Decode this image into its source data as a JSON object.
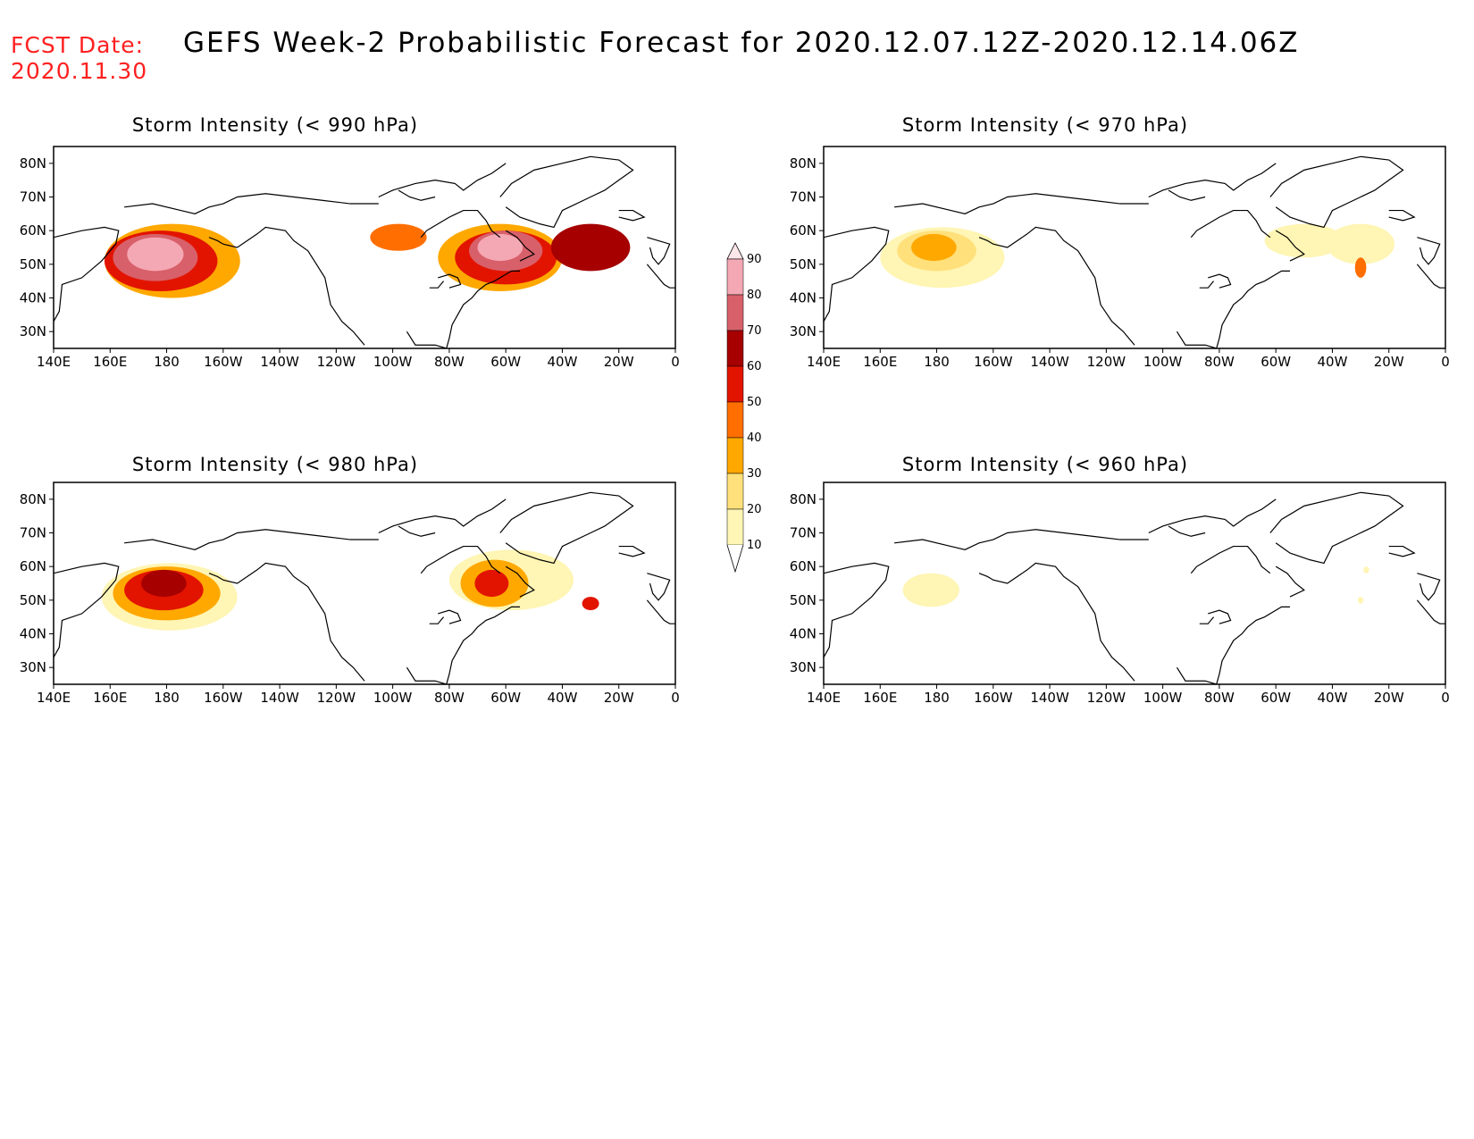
{
  "header": {
    "fcst_label": "FCST Date:",
    "fcst_date": "2020.11.30",
    "title": "GEFS Week-2 Probabilistic Forecast for 2020.12.07.12Z-2020.12.14.06Z"
  },
  "panels": [
    {
      "id": "p990",
      "title": "Storm Intensity (< 990 hPa)",
      "threshold_hpa": 990,
      "blobs": [
        {
          "lon": 182,
          "lat": 51,
          "rx": 24,
          "ry": 11,
          "level": 3
        },
        {
          "lon": 178,
          "lat": 51,
          "rx": 20,
          "ry": 9,
          "level": 5
        },
        {
          "lon": 176,
          "lat": 52,
          "rx": 15,
          "ry": 7,
          "level": 7
        },
        {
          "lon": 176,
          "lat": 53,
          "rx": 10,
          "ry": 5,
          "level": 8
        },
        {
          "lon": 262,
          "lat": 58,
          "rx": 10,
          "ry": 4,
          "level": 4
        },
        {
          "lon": 298,
          "lat": 52,
          "rx": 22,
          "ry": 10,
          "level": 3
        },
        {
          "lon": 300,
          "lat": 52,
          "rx": 18,
          "ry": 8,
          "level": 5
        },
        {
          "lon": 300,
          "lat": 54,
          "rx": 13,
          "ry": 6,
          "level": 7
        },
        {
          "lon": 298,
          "lat": 55,
          "rx": 8,
          "ry": 4,
          "level": 8
        },
        {
          "lon": 330,
          "lat": 55,
          "rx": 14,
          "ry": 7,
          "level": 6
        }
      ]
    },
    {
      "id": "p970",
      "title": "Storm Intensity (< 970 hPa)",
      "threshold_hpa": 970,
      "blobs": [
        {
          "lon": 182,
          "lat": 52,
          "rx": 22,
          "ry": 9,
          "level": 1
        },
        {
          "lon": 180,
          "lat": 54,
          "rx": 14,
          "ry": 6,
          "level": 2
        },
        {
          "lon": 179,
          "lat": 55,
          "rx": 8,
          "ry": 4,
          "level": 3
        },
        {
          "lon": 310,
          "lat": 57,
          "rx": 14,
          "ry": 5,
          "level": 1
        },
        {
          "lon": 330,
          "lat": 56,
          "rx": 12,
          "ry": 6,
          "level": 1
        },
        {
          "lon": 330,
          "lat": 49,
          "rx": 2,
          "ry": 3,
          "level": 4
        }
      ]
    },
    {
      "id": "p980",
      "title": "Storm Intensity (< 980 hPa)",
      "threshold_hpa": 980,
      "blobs": [
        {
          "lon": 181,
          "lat": 51,
          "rx": 24,
          "ry": 10,
          "level": 1
        },
        {
          "lon": 180,
          "lat": 52,
          "rx": 19,
          "ry": 8,
          "level": 3
        },
        {
          "lon": 179,
          "lat": 53,
          "rx": 14,
          "ry": 6,
          "level": 5
        },
        {
          "lon": 179,
          "lat": 55,
          "rx": 8,
          "ry": 4,
          "level": 6
        },
        {
          "lon": 302,
          "lat": 56,
          "rx": 22,
          "ry": 9,
          "level": 1
        },
        {
          "lon": 296,
          "lat": 55,
          "rx": 12,
          "ry": 7,
          "level": 3
        },
        {
          "lon": 295,
          "lat": 55,
          "rx": 6,
          "ry": 4,
          "level": 5
        },
        {
          "lon": 330,
          "lat": 49,
          "rx": 3,
          "ry": 2,
          "level": 5
        }
      ]
    },
    {
      "id": "p960",
      "title": "Storm Intensity (< 960 hPa)",
      "threshold_hpa": 960,
      "blobs": [
        {
          "lon": 178,
          "lat": 53,
          "rx": 10,
          "ry": 5,
          "level": 1
        },
        {
          "lon": 332,
          "lat": 59,
          "rx": 1,
          "ry": 1,
          "level": 1
        },
        {
          "lon": 330,
          "lat": 50,
          "rx": 1,
          "ry": 1,
          "level": 1
        }
      ]
    }
  ],
  "axes": {
    "lon_min": 140,
    "lon_max": 360,
    "lat_min": 25,
    "lat_max": 85,
    "x_ticks": [
      {
        "lon": 140,
        "label": "140E"
      },
      {
        "lon": 160,
        "label": "160E"
      },
      {
        "lon": 180,
        "label": "180"
      },
      {
        "lon": 200,
        "label": "160W"
      },
      {
        "lon": 220,
        "label": "140W"
      },
      {
        "lon": 240,
        "label": "120W"
      },
      {
        "lon": 260,
        "label": "100W"
      },
      {
        "lon": 280,
        "label": "80W"
      },
      {
        "lon": 300,
        "label": "60W"
      },
      {
        "lon": 320,
        "label": "40W"
      },
      {
        "lon": 340,
        "label": "20W"
      },
      {
        "lon": 360,
        "label": "0"
      }
    ],
    "y_ticks": [
      {
        "lat": 80,
        "label": "80N"
      },
      {
        "lat": 70,
        "label": "70N"
      },
      {
        "lat": 60,
        "label": "60N"
      },
      {
        "lat": 50,
        "label": "50N"
      },
      {
        "lat": 40,
        "label": "40N"
      },
      {
        "lat": 30,
        "label": "30N"
      }
    ]
  },
  "colorbar": {
    "levels": [
      "10",
      "20",
      "30",
      "40",
      "50",
      "60",
      "70",
      "80",
      "90"
    ],
    "colors": [
      "#ffffff",
      "#fff5b4",
      "#ffe07a",
      "#ffa800",
      "#ff6e00",
      "#e21400",
      "#a60000",
      "#d8606a",
      "#f4a8b4",
      "#ffe6ea"
    ]
  }
}
